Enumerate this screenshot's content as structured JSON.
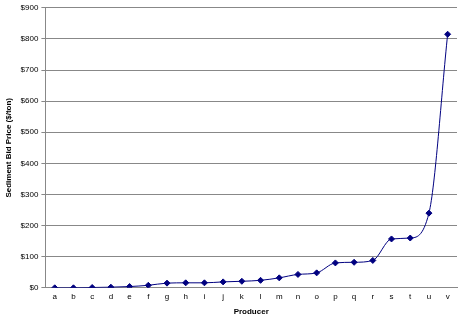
{
  "chart_data": {
    "type": "line",
    "x_label": "Producer",
    "y_label": "Sediment Bid Price ($/ton)",
    "categories": [
      "a",
      "b",
      "c",
      "d",
      "e",
      "f",
      "g",
      "h",
      "i",
      "j",
      "k",
      "l",
      "m",
      "n",
      "o",
      "p",
      "q",
      "r",
      "s",
      "t",
      "u",
      "v"
    ],
    "values": [
      0,
      0,
      1,
      2,
      4,
      8,
      15,
      16,
      16,
      19,
      21,
      24,
      32,
      43,
      48,
      80,
      82,
      88,
      157,
      160,
      240,
      815
    ],
    "color": "#000080",
    "marker": "diamond",
    "line_style": "solid",
    "ylim": [
      0,
      900
    ],
    "yticks": [
      {
        "value": 0,
        "label": "$0"
      },
      {
        "value": 100,
        "label": "$100"
      },
      {
        "value": 200,
        "label": "$200"
      },
      {
        "value": 300,
        "label": "$300"
      },
      {
        "value": 400,
        "label": "$400"
      },
      {
        "value": 500,
        "label": "$500"
      },
      {
        "value": 600,
        "label": "$600"
      },
      {
        "value": 700,
        "label": "$700"
      },
      {
        "value": 800,
        "label": "$800"
      },
      {
        "value": 900,
        "label": "$900"
      }
    ],
    "grid": "y"
  }
}
